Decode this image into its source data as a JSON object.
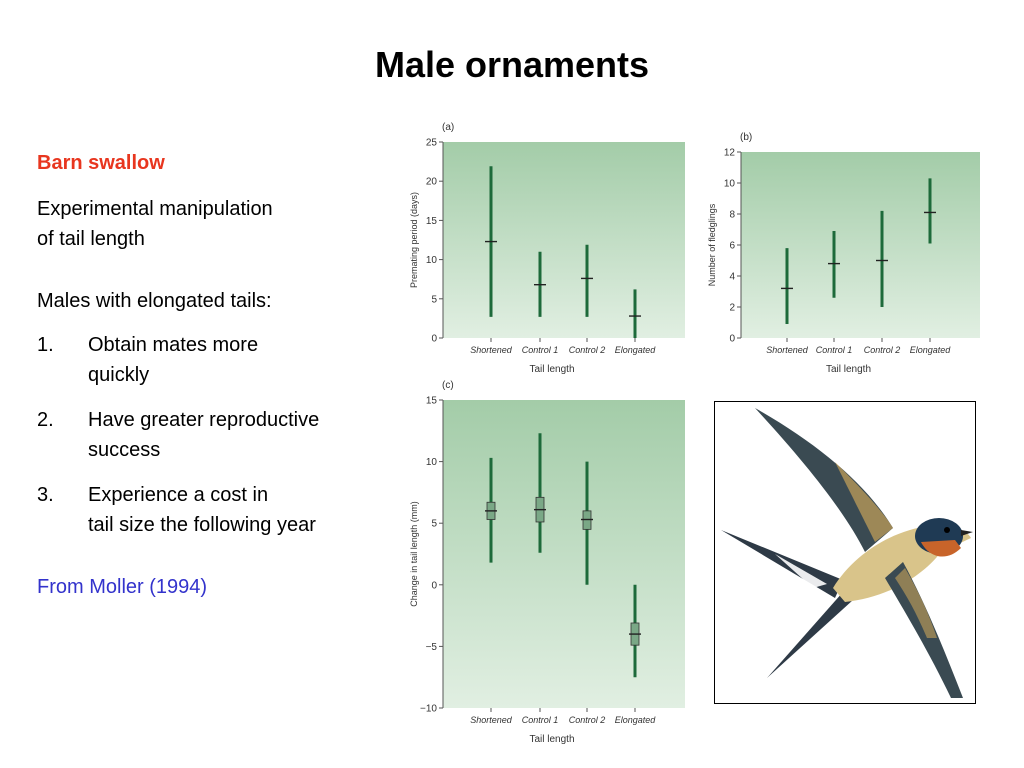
{
  "slide": {
    "title": "Male ornaments",
    "subtitle": "Barn swallow",
    "intro_line1": "Experimental manipulation",
    "intro_line2": "of tail length",
    "lead": "Males with elongated tails:",
    "items": [
      {
        "num": "1.",
        "line1": "Obtain mates more",
        "line2": "quickly"
      },
      {
        "num": "2.",
        "line1": "Have greater reproductive",
        "line2": "success"
      },
      {
        "num": "3.",
        "line1": "Experience a cost in",
        "line2": "tail size the following year"
      }
    ],
    "citation": "From Moller (1994)"
  },
  "colors": {
    "panel_top": "#a3cca8",
    "panel_bottom": "#e1efe2",
    "mark": "#1d6a3a",
    "title_red": "#e8361f",
    "citation_blue": "#3333cc"
  },
  "chart_data": [
    {
      "type": "scatter",
      "panel": "(a)",
      "categories": [
        "Shortened",
        "Control 1",
        "Control 2",
        "Elongated"
      ],
      "mean": [
        12.3,
        6.8,
        7.6,
        2.8
      ],
      "low": [
        2.7,
        2.7,
        2.7,
        0
      ],
      "high": [
        21.9,
        11.0,
        11.9,
        6.2
      ],
      "ylabel": "Premating period (days)",
      "xlabel": "Tail length",
      "ylim": [
        0,
        25
      ],
      "yticks": [
        "0",
        "5",
        "10",
        "15",
        "20",
        "25"
      ]
    },
    {
      "type": "scatter",
      "panel": "(b)",
      "categories": [
        "Shortened",
        "Control 1",
        "Control 2",
        "Elongated"
      ],
      "mean": [
        3.2,
        4.8,
        5.0,
        8.1
      ],
      "low": [
        0.9,
        2.6,
        2.0,
        6.1
      ],
      "high": [
        5.8,
        6.9,
        8.2,
        10.3
      ],
      "ylabel": "Number of fledglings",
      "xlabel": "Tail length",
      "ylim": [
        0,
        12
      ],
      "yticks": [
        "0",
        "2",
        "4",
        "6",
        "8",
        "10",
        "12"
      ]
    },
    {
      "type": "scatter",
      "panel": "(c)",
      "categories": [
        "Shortened",
        "Control 1",
        "Control 2",
        "Elongated"
      ],
      "mean": [
        6.0,
        6.1,
        5.3,
        -4.0
      ],
      "se_low": [
        5.3,
        5.1,
        4.5,
        -4.9
      ],
      "se_high": [
        6.7,
        7.1,
        6.0,
        -3.1
      ],
      "low": [
        1.8,
        2.6,
        0,
        -7.5
      ],
      "high": [
        10.3,
        12.3,
        10.0,
        0
      ],
      "ylabel": "Change in tail length (mm)",
      "xlabel": "Tail length",
      "ylim": [
        -10,
        15
      ],
      "yticks": [
        "−10",
        "−5",
        "0",
        "5",
        "10",
        "15"
      ]
    }
  ]
}
